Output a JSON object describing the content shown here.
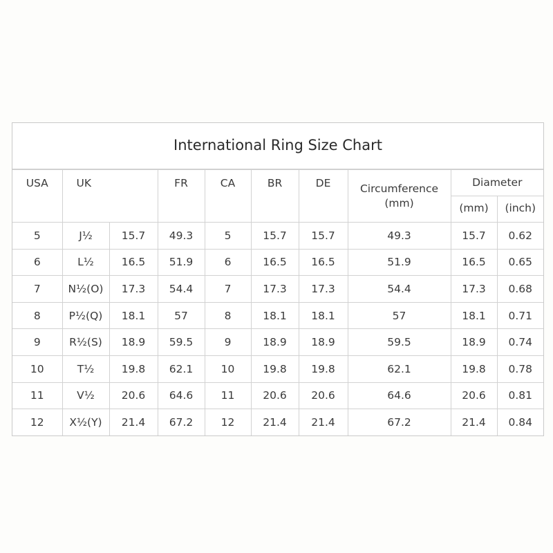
{
  "title": "International Ring Size Chart",
  "headers": {
    "usa": "USA",
    "uk": "UK",
    "fr": "FR",
    "ca": "CA",
    "br": "BR",
    "de": "DE",
    "circumference": "Circumference",
    "circumference_unit": "(mm)",
    "diameter": "Diameter",
    "diameter_mm": "(mm)",
    "diameter_inch": "(inch)"
  },
  "rows": [
    [
      "5",
      "J½",
      "15.7",
      "49.3",
      "5",
      "15.7",
      "15.7",
      "49.3",
      "15.7",
      "0.62"
    ],
    [
      "6",
      "L½",
      "16.5",
      "51.9",
      "6",
      "16.5",
      "16.5",
      "51.9",
      "16.5",
      "0.65"
    ],
    [
      "7",
      "N½(O)",
      "17.3",
      "54.4",
      "7",
      "17.3",
      "17.3",
      "54.4",
      "17.3",
      "0.68"
    ],
    [
      "8",
      "P½(Q)",
      "18.1",
      "57",
      "8",
      "18.1",
      "18.1",
      "57",
      "18.1",
      "0.71"
    ],
    [
      "9",
      "R½(S)",
      "18.9",
      "59.5",
      "9",
      "18.9",
      "18.9",
      "59.5",
      "18.9",
      "0.74"
    ],
    [
      "10",
      "T½",
      "19.8",
      "62.1",
      "10",
      "19.8",
      "19.8",
      "62.1",
      "19.8",
      "0.78"
    ],
    [
      "11",
      "V½",
      "20.6",
      "64.6",
      "11",
      "20.6",
      "20.6",
      "64.6",
      "20.6",
      "0.81"
    ],
    [
      "12",
      "X½(Y)",
      "21.4",
      "67.2",
      "12",
      "21.4",
      "21.4",
      "67.2",
      "21.4",
      "0.84"
    ]
  ]
}
